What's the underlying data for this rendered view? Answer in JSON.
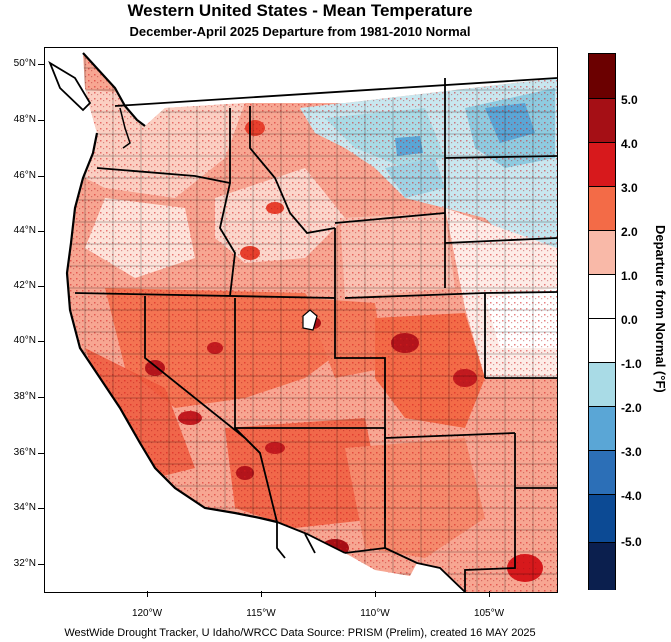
{
  "header": {
    "title": "Western United States - Mean Temperature",
    "subtitle": "December-April 2025  Departure from 1981-2010 Normal"
  },
  "axes": {
    "lat_labels": [
      "50°N",
      "48°N",
      "46°N",
      "44°N",
      "42°N",
      "40°N",
      "38°N",
      "36°N",
      "34°N",
      "32°N"
    ],
    "lon_labels": [
      "120°W",
      "115°W",
      "110°W",
      "105°W"
    ]
  },
  "legend": {
    "title": "Departure from Normal (°F)",
    "labels": [
      "5.0",
      "4.0",
      "3.0",
      "2.0",
      "1.0",
      "0.0",
      "-1.0",
      "-2.0",
      "-3.0",
      "-4.0",
      "-5.0"
    ],
    "colors": [
      "#6b0000",
      "#a50f15",
      "#d7191c",
      "#f36b47",
      "#f9b9a8",
      "#ffffff",
      "#ffffff",
      "#a9dbe6",
      "#5aa6d6",
      "#2c6fb7",
      "#0c4a94",
      "#0b1f4e"
    ]
  },
  "footer": {
    "credit": "WestWide Drought Tracker, U Idaho/WRCC Data Source: PRISM (Prelim), created 16 MAY 2025"
  }
}
